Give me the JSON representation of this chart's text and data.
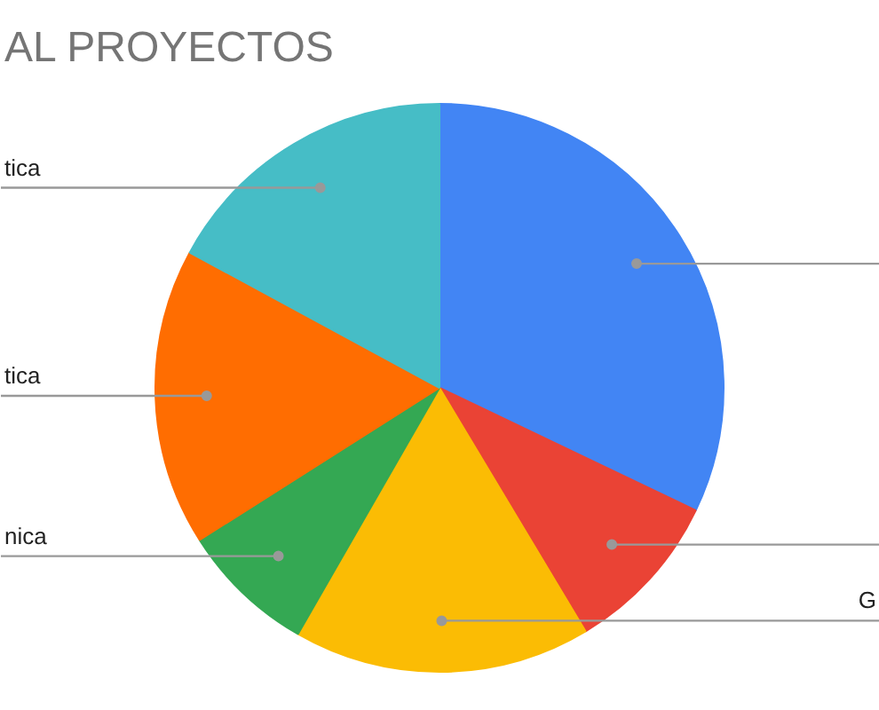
{
  "chart_data": {
    "type": "pie",
    "title": "AL PROYECTOS",
    "categories": [
      null,
      null,
      "G",
      "nica",
      "tica",
      "tica"
    ],
    "values": [
      32.1,
      9.3,
      16.9,
      7.7,
      16.9,
      17.1
    ],
    "colors": [
      "#4285f4",
      "#ea4335",
      "#fbbc04",
      "#34a853",
      "#ff6d01",
      "#46bdc6"
    ]
  }
}
